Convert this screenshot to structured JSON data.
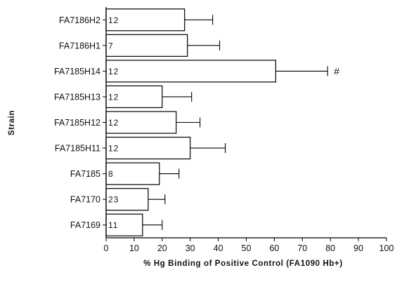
{
  "chart_data": {
    "type": "bar",
    "orientation": "horizontal",
    "title": "",
    "xlabel": "% Hg Binding of Positive Control (FA1090 Hb+)",
    "ylabel": "Strain",
    "xlim": [
      0,
      100
    ],
    "xticks": [
      0,
      10,
      20,
      30,
      40,
      50,
      60,
      70,
      80,
      90,
      100
    ],
    "grid": false,
    "legend": "none",
    "bar_fill": "#ffffff",
    "bar_stroke": "#000000",
    "categories": [
      "FA7186H2",
      "FA7186H1",
      "FA7185H14",
      "FA7185H13",
      "FA7185H12",
      "FA7185H11",
      "FA7185",
      "FA7170",
      "FA7169"
    ],
    "values": [
      28,
      29,
      60.5,
      20,
      25,
      30,
      19,
      15,
      13
    ],
    "error_upper": [
      38,
      40.5,
      79,
      30.5,
      33.5,
      42.5,
      26,
      21,
      20
    ],
    "n_labels": [
      "12",
      "7",
      "12",
      "12",
      "12",
      "12",
      "8",
      "23",
      "11"
    ],
    "annotations": [
      {
        "category": "FA7185H14",
        "text": "#"
      }
    ]
  }
}
